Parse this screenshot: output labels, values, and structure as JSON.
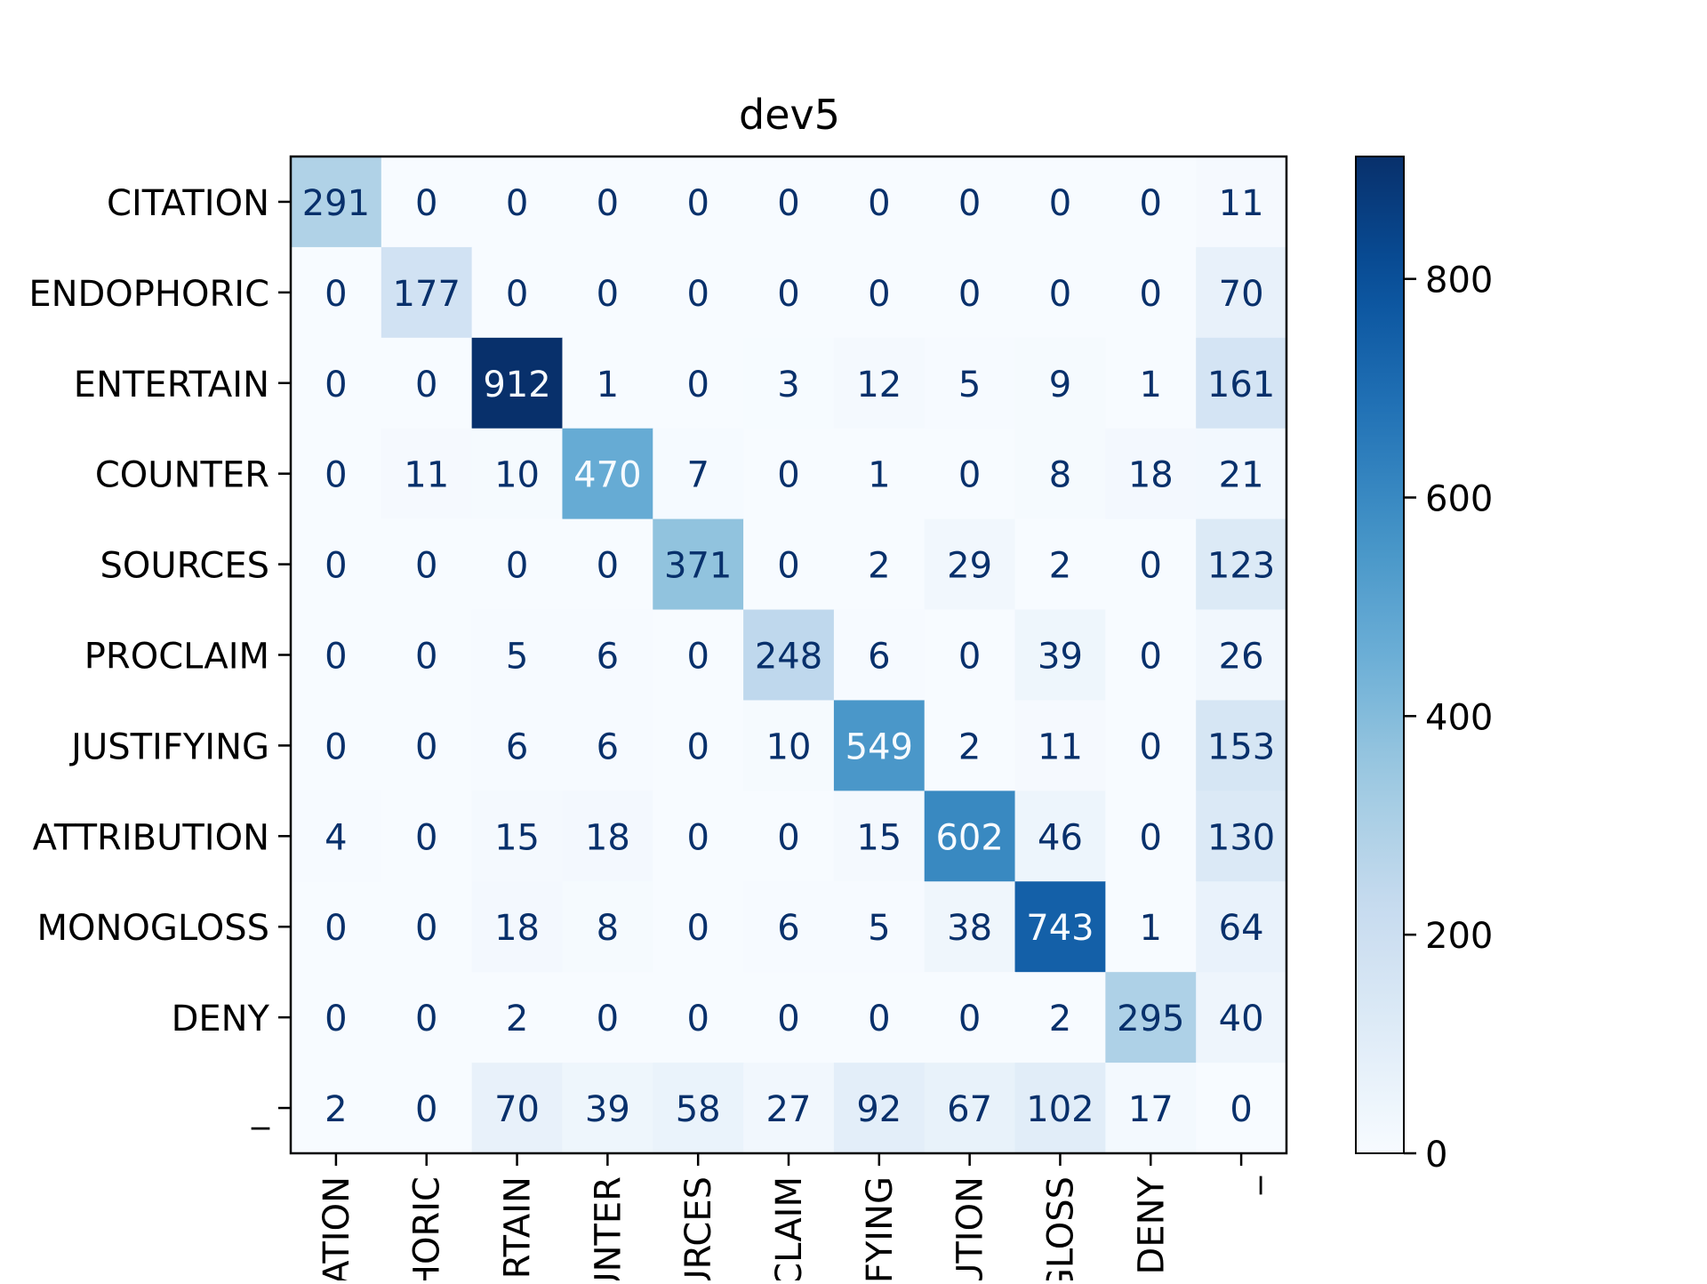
{
  "chart_data": {
    "type": "heatmap",
    "title": "dev5",
    "row_labels": [
      "CITATION",
      "ENDOPHORIC",
      "ENTERTAIN",
      "COUNTER",
      "SOURCES",
      "PROCLAIM",
      "JUSTIFYING",
      "ATTRIBUTION",
      "MONOGLOSS",
      "DENY",
      "_"
    ],
    "col_labels": [
      "CITATION",
      "ENDOPHORIC",
      "ENTERTAIN",
      "COUNTER",
      "SOURCES",
      "PROCLAIM",
      "JUSTIFYING",
      "ATTRIBUTION",
      "MONOGLOSS",
      "DENY",
      "_"
    ],
    "col_labels_visible": [
      "ATION",
      "HORIC",
      "RTAIN",
      "UNTER",
      "URCES",
      "CLAIM",
      "IFYING",
      "UTION",
      "GLOSS",
      "DENY",
      "_"
    ],
    "matrix": [
      [
        291,
        0,
        0,
        0,
        0,
        0,
        0,
        0,
        0,
        0,
        11
      ],
      [
        0,
        177,
        0,
        0,
        0,
        0,
        0,
        0,
        0,
        0,
        70
      ],
      [
        0,
        0,
        912,
        1,
        0,
        3,
        12,
        5,
        9,
        1,
        161
      ],
      [
        0,
        11,
        10,
        470,
        7,
        0,
        1,
        0,
        8,
        18,
        21
      ],
      [
        0,
        0,
        0,
        0,
        371,
        0,
        2,
        29,
        2,
        0,
        123
      ],
      [
        0,
        0,
        5,
        6,
        0,
        248,
        6,
        0,
        39,
        0,
        26
      ],
      [
        0,
        0,
        6,
        6,
        0,
        10,
        549,
        2,
        11,
        0,
        153
      ],
      [
        4,
        0,
        15,
        18,
        0,
        0,
        15,
        602,
        46,
        0,
        130
      ],
      [
        0,
        0,
        18,
        8,
        0,
        6,
        5,
        38,
        743,
        1,
        64
      ],
      [
        0,
        0,
        2,
        0,
        0,
        0,
        0,
        0,
        2,
        295,
        40
      ],
      [
        2,
        0,
        70,
        39,
        58,
        27,
        92,
        67,
        102,
        17,
        0
      ]
    ],
    "value_range": [
      0,
      912
    ],
    "colormap": "Blues",
    "colorbar": {
      "ticks": [
        0,
        200,
        400,
        600,
        800
      ]
    },
    "xlabel": "",
    "ylabel": ""
  }
}
